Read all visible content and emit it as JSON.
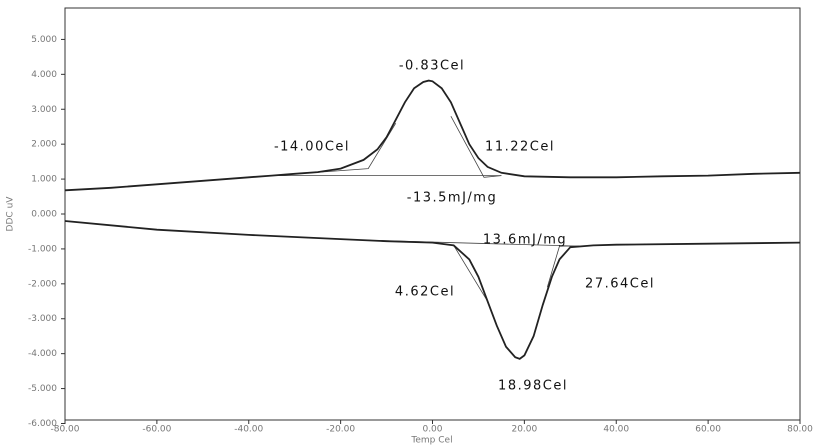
{
  "chart_data": {
    "type": "line",
    "x_label": "Temp Cel",
    "y_label": "DDC uV",
    "xlim": [
      -80,
      80
    ],
    "ylim": [
      -5.9,
      5.9
    ],
    "xticks": [
      {
        "value": -80,
        "label": "-80.00"
      },
      {
        "value": -60,
        "label": "-60.00"
      },
      {
        "value": -40,
        "label": "-40.00"
      },
      {
        "value": -20,
        "label": "-20.00"
      },
      {
        "value": 0,
        "label": "0.00"
      },
      {
        "value": 20,
        "label": "20.00"
      },
      {
        "value": 40,
        "label": "40.00"
      },
      {
        "value": 60,
        "label": "60.00"
      },
      {
        "value": 80,
        "label": "80.00"
      }
    ],
    "yticks": [
      {
        "value": 5,
        "label": "5.000"
      },
      {
        "value": 4,
        "label": "4.000"
      },
      {
        "value": 3,
        "label": "3.000"
      },
      {
        "value": 2,
        "label": "2.000"
      },
      {
        "value": 1,
        "label": "1.000"
      },
      {
        "value": 0,
        "label": "0.000"
      },
      {
        "value": -1,
        "label": "-1.000"
      },
      {
        "value": -2,
        "label": "-2.000"
      },
      {
        "value": -3,
        "label": "-3.000"
      },
      {
        "value": -4,
        "label": "-4.000"
      },
      {
        "value": -5,
        "label": "-5.000"
      },
      {
        "value": -6,
        "label": "-6.000"
      }
    ],
    "series": [
      {
        "color": "#222222",
        "x": [
          -80,
          -70,
          -60,
          -50,
          -40,
          -35,
          -30,
          -25,
          -20,
          -15,
          -12,
          -10,
          -8,
          -6,
          -4,
          -2,
          -0.83,
          0,
          2,
          4,
          6,
          8,
          10,
          12,
          15,
          20,
          30,
          40,
          50,
          60,
          70,
          80
        ],
        "values": [
          0.68,
          0.75,
          0.85,
          0.95,
          1.05,
          1.1,
          1.15,
          1.2,
          1.3,
          1.55,
          1.85,
          2.2,
          2.7,
          3.2,
          3.6,
          3.78,
          3.82,
          3.8,
          3.6,
          3.2,
          2.6,
          2.0,
          1.6,
          1.35,
          1.18,
          1.08,
          1.05,
          1.05,
          1.08,
          1.1,
          1.15,
          1.18
        ]
      },
      {
        "color": "#222222",
        "x": [
          -80,
          -60,
          -40,
          -20,
          -10,
          0,
          4.62,
          8,
          10,
          12,
          14,
          16,
          18,
          18.98,
          20,
          22,
          24,
          26,
          27.64,
          30,
          35,
          40,
          60,
          80
        ],
        "values": [
          -0.2,
          -0.45,
          -0.6,
          -0.72,
          -0.78,
          -0.82,
          -0.9,
          -1.3,
          -1.8,
          -2.5,
          -3.2,
          -3.8,
          -4.1,
          -4.15,
          -4.05,
          -3.5,
          -2.6,
          -1.8,
          -1.3,
          -0.95,
          -0.9,
          -0.88,
          -0.85,
          -0.82
        ]
      }
    ],
    "construction_lines": [
      {
        "x": [
          -35,
          15
        ],
        "values": [
          1.1,
          1.1
        ]
      },
      {
        "x": [
          -35,
          -14,
          -8
        ],
        "values": [
          1.1,
          1.3,
          2.6
        ]
      },
      {
        "x": [
          4,
          11.22,
          15
        ],
        "values": [
          2.8,
          1.05,
          1.1
        ]
      },
      {
        "x": [
          -15,
          32
        ],
        "values": [
          -0.75,
          -0.92
        ]
      },
      {
        "x": [
          4.62,
          12
        ],
        "values": [
          -0.9,
          -2.5
        ]
      },
      {
        "x": [
          25,
          27.64,
          32
        ],
        "values": [
          -2.1,
          -0.92,
          -0.92
        ]
      }
    ],
    "annotations": [
      "-0.83Cel",
      "-14.00Cel",
      "11.22Cel",
      "-13.5mJ/mg",
      "13.6mJ/mg",
      "4.62Cel",
      "27.64Cel",
      "18.98Cel"
    ]
  }
}
